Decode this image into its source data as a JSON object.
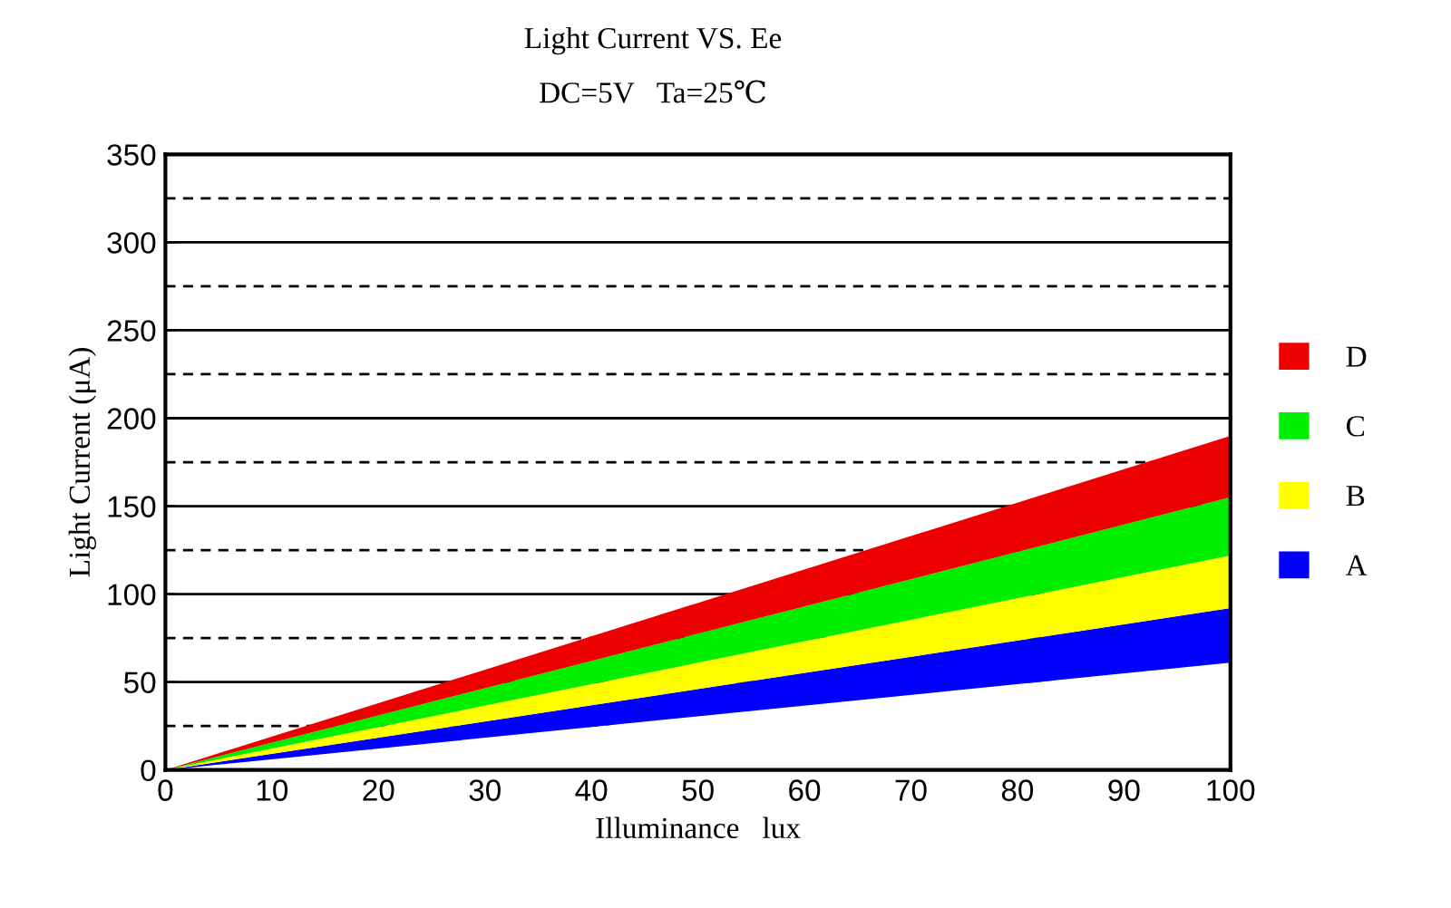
{
  "chart_data": {
    "type": "area",
    "title": "Light Current VS. Ee",
    "subtitle": "DC=5V   Ta=25℃",
    "xlabel": "Illuminance   lux",
    "ylabel": "Light Current (μA)",
    "x": [
      0,
      100
    ],
    "stacked": true,
    "series": [
      {
        "color": "#ffffff",
        "values": [
          0,
          61
        ]
      },
      {
        "name": "A",
        "color": "#0000ff",
        "values": [
          0,
          31
        ]
      },
      {
        "name": "B",
        "color": "#ffff00",
        "values": [
          0,
          30
        ]
      },
      {
        "name": "C",
        "color": "#00ee00",
        "values": [
          0,
          33
        ]
      },
      {
        "name": "D",
        "color": "#ee0000",
        "values": [
          0,
          35
        ]
      }
    ],
    "xlim": [
      0,
      100
    ],
    "xticks": [
      0,
      10,
      20,
      30,
      40,
      50,
      60,
      70,
      80,
      90,
      100
    ],
    "ylim": [
      0,
      350
    ],
    "yticks": [
      0,
      50,
      100,
      150,
      200,
      250,
      300,
      350
    ],
    "grid": "y",
    "legend": "right",
    "ref_lines": [
      {
        "axis": "y",
        "value": 25,
        "line_style": "dashed"
      },
      {
        "axis": "y",
        "value": 75,
        "line_style": "dashed"
      },
      {
        "axis": "y",
        "value": 125,
        "line_style": "dashed"
      },
      {
        "axis": "y",
        "value": 175,
        "line_style": "dashed"
      },
      {
        "axis": "y",
        "value": 225,
        "line_style": "dashed"
      },
      {
        "axis": "y",
        "value": 275,
        "line_style": "dashed"
      },
      {
        "axis": "y",
        "value": 325,
        "line_style": "dashed"
      }
    ]
  }
}
